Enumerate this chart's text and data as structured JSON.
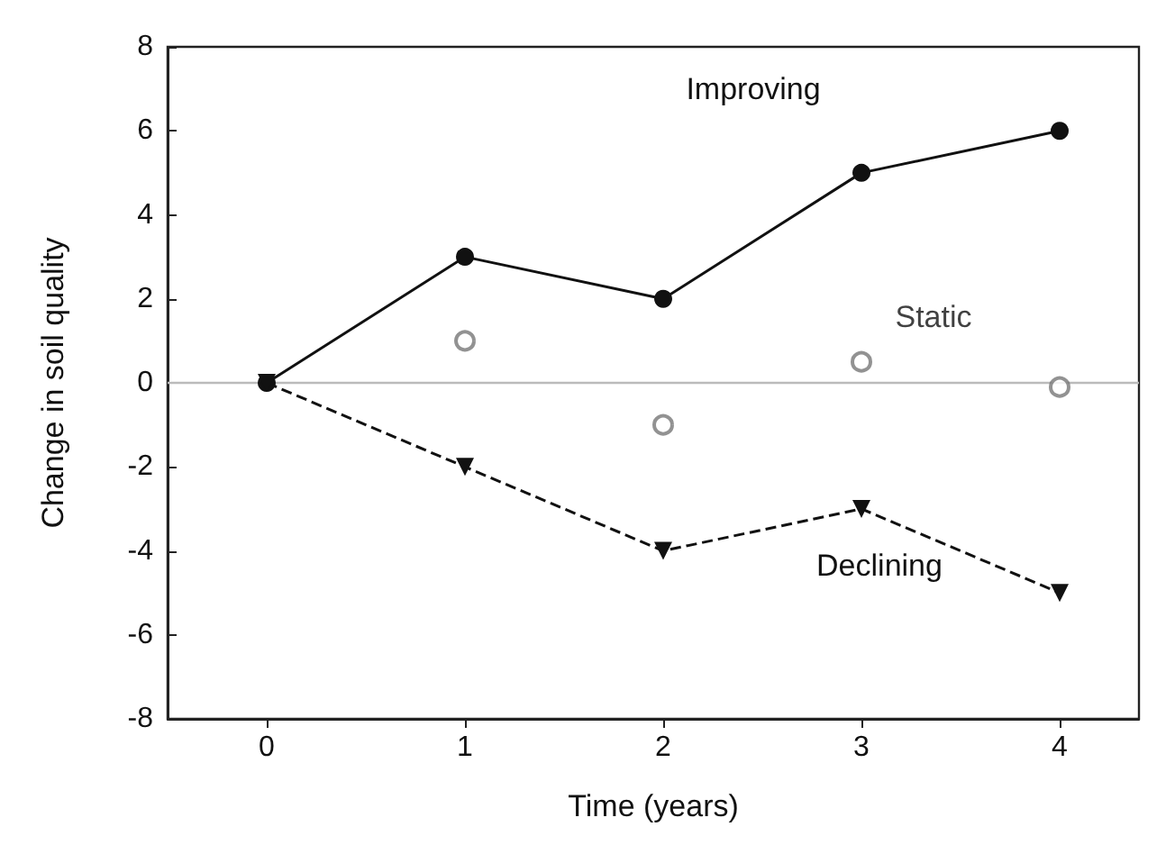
{
  "chart_data": {
    "type": "line",
    "xlabel": "Time (years)",
    "ylabel": "Change in soil quality",
    "x": [
      0,
      1,
      2,
      3,
      4
    ],
    "series": [
      {
        "name": "Improving",
        "color": "#111111",
        "values": [
          0,
          3,
          2,
          5,
          6
        ],
        "marker": "circle",
        "line_style": "solid"
      },
      {
        "name": "Static",
        "type": "scatter",
        "color": "#777777",
        "values": [
          null,
          1,
          -1,
          0.5,
          -0.1
        ],
        "marker": "circle"
      },
      {
        "name": "Declining",
        "color": "#111111",
        "values": [
          0,
          -2,
          -4,
          -3,
          -5
        ],
        "marker": "triangle",
        "line_style": "dashed"
      }
    ],
    "xlim": [
      -0.5,
      4.4
    ],
    "xticks": [
      0,
      1,
      2,
      3,
      4
    ],
    "ylim": [
      -8,
      8
    ],
    "yticks": [
      -8,
      -6,
      -4,
      -2,
      0,
      2,
      4,
      6,
      8
    ],
    "ref_lines": [
      {
        "axis": "y",
        "value": 0,
        "color": "#bbbbbb",
        "line_style": "solid"
      }
    ],
    "grid": false,
    "legend": false
  }
}
